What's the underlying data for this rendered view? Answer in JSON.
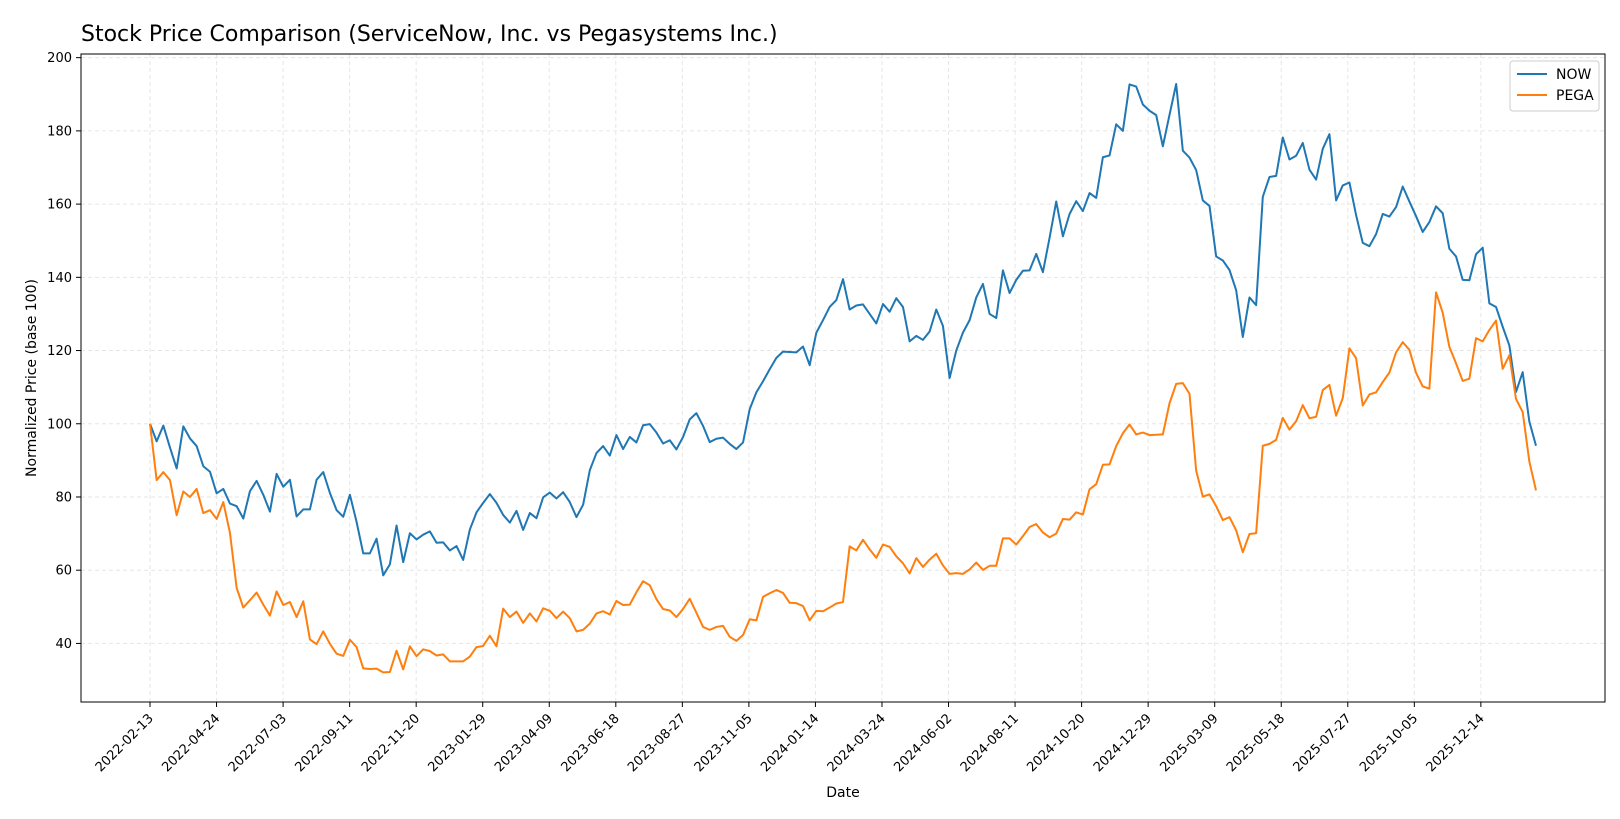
{
  "chart_data": {
    "type": "line",
    "title": "Stock Price Comparison (ServiceNow, Inc. vs Pegasystems Inc.)",
    "xlabel": "Date",
    "ylabel": "Normalized Price (base 100)",
    "ylim": [
      24,
      201
    ],
    "yticks": [
      40,
      60,
      80,
      100,
      120,
      140,
      160,
      180,
      200
    ],
    "x_start": "2022-02-13",
    "x_end": "2026-02-10",
    "xticks": [
      "2022-02-13",
      "2022-04-24",
      "2022-07-03",
      "2022-09-11",
      "2022-11-20",
      "2023-01-29",
      "2023-04-09",
      "2023-06-18",
      "2023-08-27",
      "2023-11-05",
      "2024-01-14",
      "2024-03-24",
      "2024-06-02",
      "2024-08-11",
      "2024-10-20",
      "2024-12-29",
      "2025-03-09",
      "2025-05-18",
      "2025-07-27",
      "2025-10-05",
      "2025-12-14"
    ],
    "grid": true,
    "legend_position": "top-right",
    "series": [
      {
        "name": "NOW",
        "color": "#1f77b4",
        "values": [
          100.0,
          95.2,
          99.5,
          93.5,
          87.8,
          99.3,
          96.0,
          93.9,
          88.4,
          86.9,
          81.0,
          82.2,
          78.2,
          77.5,
          74.1,
          81.6,
          84.4,
          80.6,
          76.0,
          86.3,
          82.8,
          84.7,
          74.7,
          76.6,
          76.6,
          84.7,
          86.8,
          81.1,
          76.4,
          74.6,
          80.6,
          73.2,
          64.6,
          64.6,
          68.6,
          58.6,
          61.6,
          72.2,
          62.2,
          70.1,
          68.4,
          69.7,
          70.6,
          67.5,
          67.6,
          65.4,
          66.6,
          62.8,
          71.1,
          75.8,
          78.4,
          80.8,
          78.4,
          75.1,
          73.0,
          76.2,
          71.0,
          75.6,
          74.2,
          79.9,
          81.2,
          79.6,
          81.3,
          78.6,
          74.5,
          77.9,
          87.3,
          92.0,
          93.9,
          91.3,
          96.9,
          93.1,
          96.4,
          94.9,
          99.6,
          99.9,
          97.6,
          94.6,
          95.5,
          93.0,
          96.4,
          101.2,
          102.9,
          99.4,
          95.0,
          95.9,
          96.2,
          94.5,
          93.1,
          94.9,
          104.0,
          108.6,
          111.6,
          114.9,
          118.0,
          119.7,
          119.6,
          119.5,
          121.1,
          116.0,
          124.9,
          128.3,
          131.9,
          133.8,
          139.5,
          131.2,
          132.3,
          132.6,
          130.0,
          127.4,
          132.7,
          130.6,
          134.3,
          131.9,
          122.5,
          124.0,
          122.9,
          125.2,
          131.2,
          126.7,
          112.5,
          120.0,
          124.9,
          128.3,
          134.5,
          138.2,
          130.0,
          128.9,
          141.9,
          135.7,
          139.3,
          141.8,
          141.9,
          146.4,
          141.4,
          150.8,
          160.7,
          151.2,
          157.3,
          160.8,
          158.1,
          163.0,
          161.7,
          172.8,
          173.3,
          181.8,
          180.0,
          192.7,
          192.1,
          187.2,
          185.5,
          184.3,
          175.8,
          184.4,
          192.8,
          174.6,
          172.7,
          169.3,
          161.0,
          159.5,
          145.7,
          144.6,
          142.0,
          136.5,
          123.7,
          134.5,
          132.4,
          162.0,
          167.4,
          167.7,
          178.2,
          172.2,
          173.2,
          176.7,
          169.4,
          166.7,
          175.1,
          179.1,
          161.0,
          165.1,
          165.9,
          157.0,
          149.4,
          148.5,
          151.8,
          157.3,
          156.6,
          159.2,
          164.8,
          160.7,
          156.7,
          152.4,
          155.1,
          159.4,
          157.5,
          147.8,
          145.7,
          139.3,
          139.2,
          146.3,
          148.1,
          132.9,
          131.9,
          126.5,
          121.4,
          108.7,
          114.1,
          100.6,
          94.0
        ]
      },
      {
        "name": "PEGA",
        "color": "#ff7f0e",
        "values": [
          100.0,
          84.6,
          86.8,
          84.6,
          75.0,
          81.5,
          80.0,
          82.2,
          75.6,
          76.4,
          74.0,
          78.6,
          70.2,
          55.2,
          49.8,
          51.8,
          53.9,
          50.6,
          47.6,
          54.2,
          50.5,
          51.3,
          47.2,
          51.5,
          41.1,
          39.8,
          43.3,
          39.9,
          37.2,
          36.6,
          41.0,
          39.0,
          33.2,
          33.0,
          33.1,
          32.1,
          32.2,
          38.0,
          32.9,
          39.2,
          36.5,
          38.4,
          37.9,
          36.7,
          37.0,
          35.1,
          35.1,
          35.1,
          36.4,
          39.0,
          39.3,
          42.1,
          39.2,
          49.5,
          47.2,
          48.7,
          45.6,
          48.2,
          46.0,
          49.6,
          48.9,
          46.9,
          48.7,
          46.9,
          43.3,
          43.7,
          45.4,
          48.2,
          48.8,
          47.9,
          51.6,
          50.5,
          50.6,
          54.0,
          57.0,
          55.9,
          52.1,
          49.4,
          49.0,
          47.2,
          49.4,
          52.2,
          48.4,
          44.5,
          43.7,
          44.5,
          44.8,
          41.8,
          40.7,
          42.3,
          46.6,
          46.3,
          52.7,
          53.7,
          54.6,
          53.8,
          51.1,
          51.0,
          50.2,
          46.3,
          48.9,
          48.8,
          49.8,
          50.9,
          51.3,
          66.5,
          65.4,
          68.3,
          65.7,
          63.4,
          67.0,
          66.4,
          63.8,
          61.9,
          59.1,
          63.3,
          60.9,
          62.9,
          64.5,
          61.3,
          59.0,
          59.2,
          59.0,
          60.2,
          62.1,
          60.1,
          61.2,
          61.2,
          68.7,
          68.7,
          67.0,
          69.3,
          71.8,
          72.6,
          70.3,
          69.0,
          70.0,
          74.0,
          73.8,
          75.8,
          75.2,
          82.1,
          83.5,
          88.8,
          88.9,
          93.9,
          97.4,
          99.8,
          97.1,
          97.6,
          96.9,
          97.0,
          97.1,
          105.6,
          110.9,
          111.1,
          108.2,
          87.2,
          80.1,
          80.7,
          77.5,
          73.7,
          74.5,
          70.9,
          64.9,
          69.9,
          70.1,
          94.0,
          94.5,
          95.6,
          101.6,
          98.4,
          100.7,
          105.1,
          101.5,
          101.9,
          109.2,
          110.6,
          102.2,
          107.0,
          120.6,
          117.9,
          105.0,
          108.0,
          108.6,
          111.4,
          114.0,
          119.5,
          122.3,
          120.2,
          113.9,
          110.2,
          109.6,
          135.9,
          130.3,
          121.0,
          116.5,
          111.7,
          112.3,
          123.4,
          122.5,
          125.6,
          128.2,
          115.0,
          118.7,
          106.8,
          103.2,
          89.7,
          81.8
        ]
      }
    ]
  }
}
